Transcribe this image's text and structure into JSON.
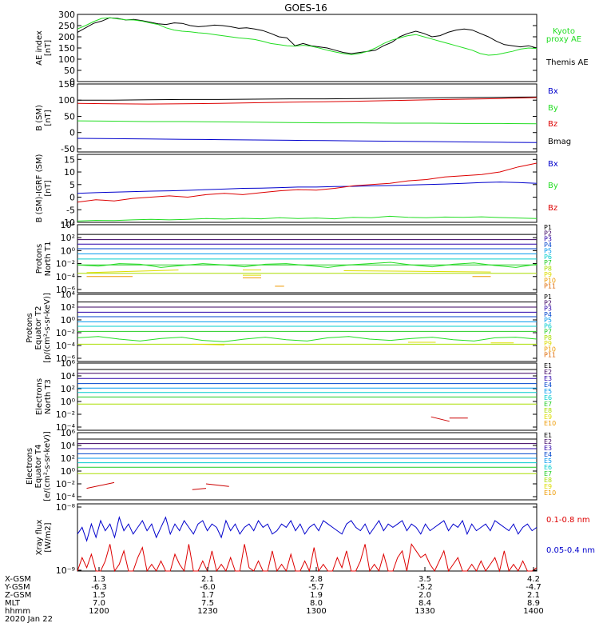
{
  "title": "GOES-16",
  "colors": {
    "black": "#000000",
    "green": "#22dd22",
    "red": "#dd0000",
    "blue": "#0000cc",
    "p": [
      "#000000",
      "#3a0060",
      "#2a00aa",
      "#0044cc",
      "#0099ee",
      "#00cccc",
      "#22cc22",
      "#aadd00",
      "#dddd00",
      "#ee9900",
      "#dd6600",
      "#cc0000"
    ]
  },
  "chart_data": [
    {
      "id": "ae",
      "type": "line",
      "ylabel": [
        "AE index",
        "[nT]"
      ],
      "ylim": [
        0,
        300
      ],
      "yticks": [
        "300",
        "250",
        "200",
        "150",
        "100",
        "50",
        "0"
      ],
      "yticks_num": [
        300,
        250,
        200,
        150,
        100,
        50,
        0
      ],
      "legend": [
        {
          "text": "Kyoto",
          "color": "green"
        },
        {
          "text": "proxy AE",
          "color": "green"
        },
        {
          "text": "Themis AE",
          "color": "black"
        }
      ],
      "series": [
        {
          "name": "Themis AE",
          "color": "black",
          "values": [
            220,
            240,
            260,
            270,
            285,
            282,
            275,
            278,
            272,
            265,
            258,
            255,
            262,
            260,
            250,
            245,
            248,
            252,
            250,
            245,
            238,
            240,
            235,
            228,
            215,
            200,
            195,
            160,
            170,
            160,
            155,
            150,
            140,
            130,
            125,
            130,
            135,
            140,
            160,
            175,
            200,
            215,
            225,
            215,
            200,
            205,
            220,
            230,
            235,
            230,
            215,
            200,
            180,
            165,
            160,
            155,
            160,
            150
          ]
        },
        {
          "name": "Kyoto proxy AE",
          "color": "green",
          "values": [
            235,
            250,
            268,
            282,
            285,
            280,
            276,
            275,
            270,
            262,
            255,
            240,
            230,
            225,
            222,
            218,
            215,
            210,
            205,
            200,
            195,
            192,
            188,
            180,
            170,
            165,
            160,
            158,
            162,
            158,
            150,
            140,
            132,
            125,
            120,
            125,
            135,
            150,
            170,
            185,
            195,
            205,
            210,
            200,
            190,
            180,
            170,
            160,
            150,
            140,
            125,
            118,
            120,
            128,
            135,
            145,
            150,
            148
          ]
        }
      ]
    },
    {
      "id": "bsm",
      "type": "line",
      "ylabel": [
        "B (SM)",
        "[nT]"
      ],
      "ylim": [
        -60,
        150
      ],
      "yticks": [
        "150",
        "100",
        "50",
        "0",
        "-50"
      ],
      "yticks_num": [
        150,
        100,
        50,
        0,
        -50
      ],
      "legend": [
        {
          "text": "Bx",
          "color": "blue"
        },
        {
          "text": "By",
          "color": "green"
        },
        {
          "text": "Bz",
          "color": "red"
        },
        {
          "text": "Bmag",
          "color": "black"
        }
      ],
      "series": [
        {
          "name": "Bmag",
          "color": "black",
          "values": [
            100,
            100,
            101,
            102,
            102,
            103,
            104,
            104,
            105,
            106,
            107,
            108,
            109,
            110
          ]
        },
        {
          "name": "Bz",
          "color": "red",
          "values": [
            90,
            89,
            88,
            89,
            90,
            92,
            94,
            95,
            97,
            99,
            101,
            103,
            105,
            108
          ]
        },
        {
          "name": "By",
          "color": "green",
          "values": [
            36,
            35,
            34,
            34,
            33,
            32,
            31,
            30,
            30,
            29,
            29,
            28,
            28,
            27
          ]
        },
        {
          "name": "Bx",
          "color": "blue",
          "values": [
            -18,
            -19,
            -20,
            -21,
            -22,
            -23,
            -24,
            -25,
            -26,
            -27,
            -28,
            -29,
            -30,
            -31
          ]
        }
      ]
    },
    {
      "id": "bigrf",
      "type": "line",
      "ylabel": [
        "B (SM)-IGRF (SM)",
        "[nT]"
      ],
      "ylim": [
        -10,
        17
      ],
      "yticks": [
        "15",
        "10",
        "5",
        "0",
        "-5",
        "-10"
      ],
      "yticks_num": [
        15,
        10,
        5,
        0,
        -5,
        -10
      ],
      "legend": [
        {
          "text": "Bx",
          "color": "blue"
        },
        {
          "text": "By",
          "color": "green"
        },
        {
          "text": "Bz",
          "color": "red"
        }
      ],
      "series": [
        {
          "name": "Bx",
          "color": "blue",
          "values": [
            1.5,
            1.8,
            2,
            2.2,
            2.4,
            2.5,
            2.7,
            3,
            3.2,
            3.5,
            3.6,
            3.8,
            4,
            4,
            4.2,
            4.3,
            4.5,
            4.6,
            4.8,
            5,
            5.2,
            5.5,
            5.8,
            6,
            5.8,
            5.5
          ]
        },
        {
          "name": "Bz",
          "color": "red",
          "values": [
            -2,
            -1,
            -1.5,
            -0.5,
            0,
            0.5,
            0,
            1,
            1.5,
            1,
            1.8,
            2.5,
            3,
            2.8,
            3.5,
            4.5,
            5,
            5.5,
            6.5,
            7,
            8,
            8.5,
            9,
            10,
            12,
            13.5
          ]
        },
        {
          "name": "By",
          "color": "green",
          "values": [
            -9.5,
            -9.2,
            -9.3,
            -9,
            -8.8,
            -9,
            -8.8,
            -8.5,
            -8.7,
            -8.4,
            -8.6,
            -8.2,
            -8.5,
            -8.3,
            -8.6,
            -8,
            -8.2,
            -7.6,
            -8,
            -8.2,
            -7.9,
            -8,
            -7.8,
            -8.1,
            -8.3,
            -8.5
          ]
        }
      ]
    },
    {
      "id": "p_t1",
      "type": "line",
      "ylog": true,
      "ylabel": [
        "Protons",
        "North T1"
      ],
      "ylim_log": [
        -6.5,
        4
      ],
      "yticks": [
        "10⁴",
        "10²",
        "10⁰",
        "10⁻²",
        "10⁻⁴",
        "10⁻⁶"
      ],
      "yticks_num": [
        4,
        2,
        0,
        -2,
        -4,
        -6
      ],
      "legend": [
        "P1",
        "P2",
        "P3",
        "P4",
        "P5",
        "P6",
        "P7",
        "P8",
        "P9",
        "P10",
        "P11"
      ],
      "levels_log": [
        2.5,
        1.7,
        1.0,
        0.3,
        -0.5,
        -1.3,
        -2.2,
        -3.5
      ],
      "green_wiggle": [
        -2.2,
        -2.4,
        -2.0,
        -2.1,
        -2.6,
        -2.3,
        -2.0,
        -2.2,
        -2.5,
        -2.1,
        -2.0,
        -2.3,
        -2.6,
        -2.2,
        -2.0,
        -1.8,
        -2.2,
        -2.5,
        -2.1,
        -1.9,
        -2.3,
        -2.6,
        -2.1
      ],
      "yellow_segments": [
        [
          0.02,
          0.22,
          -3.4,
          -3.0
        ],
        [
          0.36,
          0.4,
          -3.0,
          -3.0
        ],
        [
          0.36,
          0.4,
          -3.8,
          -3.8
        ],
        [
          0.58,
          0.9,
          -3.1,
          -3.3
        ]
      ],
      "orange_segments": [
        [
          0.02,
          0.12,
          -4.0,
          -4.0
        ],
        [
          0.36,
          0.4,
          -4.2,
          -4.2
        ],
        [
          0.43,
          0.45,
          -5.5,
          -5.5
        ],
        [
          0.86,
          0.9,
          -4.0,
          -4.0
        ]
      ]
    },
    {
      "id": "p_t2",
      "type": "line",
      "ylog": true,
      "ylabel": [
        "Protons",
        "Equator T2",
        "[p/(cm²-s-sr-keV)]"
      ],
      "ylim_log": [
        -6.5,
        4
      ],
      "yticks": [
        "10⁴",
        "10²",
        "10⁰",
        "10⁻²",
        "10⁻⁴",
        "10⁻⁶"
      ],
      "yticks_num": [
        4,
        2,
        0,
        -2,
        -4,
        -6
      ],
      "legend": [
        "P1",
        "P2",
        "P3",
        "P4",
        "P5",
        "P6",
        "P7",
        "P8",
        "P9",
        "P10",
        "P11"
      ],
      "levels_log": [
        2.8,
        2.0,
        1.2,
        0.5,
        -0.3,
        -1.0,
        -1.8,
        -3.8
      ],
      "green_wiggle": [
        -2.8,
        -2.6,
        -3.0,
        -3.3,
        -2.9,
        -2.7,
        -3.2,
        -3.4,
        -3.0,
        -2.7,
        -3.1,
        -3.3,
        -2.8,
        -2.6,
        -3.0,
        -3.2,
        -2.9,
        -2.7,
        -3.1,
        -3.3,
        -2.8,
        -2.7,
        -3.0
      ],
      "yellow_segments": [
        [
          0.25,
          0.32,
          -3.8,
          -3.9
        ],
        [
          0.72,
          0.78,
          -3.5,
          -3.5
        ],
        [
          0.9,
          0.95,
          -3.6,
          -3.6
        ]
      ],
      "orange_segments": []
    },
    {
      "id": "e_t3",
      "type": "line",
      "ylog": true,
      "ylabel": [
        "Electrons",
        "North T3"
      ],
      "ylim_log": [
        -4.5,
        6
      ],
      "yticks": [
        "10⁶",
        "10⁴",
        "10²",
        "10⁰",
        "10⁻²",
        "10⁻⁴"
      ],
      "yticks_num": [
        6,
        4,
        2,
        0,
        -2,
        -4
      ],
      "legend": [
        "E1",
        "E2",
        "E3",
        "E4",
        "E5",
        "E6",
        "E7",
        "E8",
        "E9",
        "E10"
      ],
      "levels_log": [
        5.0,
        4.4,
        3.6,
        2.8,
        2.1,
        1.4,
        0.7,
        -0.4
      ],
      "red_segments": [
        [
          0.77,
          0.81,
          -2.4,
          -3.1
        ],
        [
          0.81,
          0.85,
          -2.6,
          -2.6
        ]
      ]
    },
    {
      "id": "e_t4",
      "type": "line",
      "ylog": true,
      "ylabel": [
        "Electrons",
        "Equator T4",
        "[e/(cm²-s-sr-keV)]"
      ],
      "ylim_log": [
        -4.5,
        6
      ],
      "yticks": [
        "10⁶",
        "10⁴",
        "10²",
        "10⁰",
        "10⁻²",
        "10⁻⁴"
      ],
      "yticks_num": [
        6,
        4,
        2,
        0,
        -2,
        -4
      ],
      "legend": [
        "E1",
        "E2",
        "E3",
        "E4",
        "E5",
        "E6",
        "E7",
        "E8",
        "E9",
        "E10"
      ],
      "levels_log": [
        5.0,
        4.3,
        3.5,
        2.7,
        2.0,
        1.3,
        0.6,
        -0.4
      ],
      "red_segments": [
        [
          0.02,
          0.08,
          -2.7,
          -1.8
        ],
        [
          0.25,
          0.28,
          -2.9,
          -2.7
        ],
        [
          0.28,
          0.33,
          -2.0,
          -2.4
        ]
      ]
    },
    {
      "id": "xray",
      "type": "line",
      "ylabel": [
        "Xray flux",
        "[W/m2]"
      ],
      "yticks": [
        "10⁻⁸",
        "10⁻⁹"
      ],
      "legend": [
        {
          "text": "0.1-0.8 nm",
          "color": "red"
        },
        {
          "text": "0.05-0.4 nm",
          "color": "blue"
        }
      ],
      "blue_series": [
        0.45,
        0.35,
        0.55,
        0.3,
        0.5,
        0.25,
        0.4,
        0.3,
        0.5,
        0.2,
        0.4,
        0.3,
        0.45,
        0.35,
        0.25,
        0.4,
        0.3,
        0.5,
        0.35,
        0.2,
        0.45,
        0.3,
        0.4,
        0.25,
        0.35,
        0.45,
        0.3,
        0.25,
        0.4,
        0.3,
        0.35,
        0.5,
        0.25,
        0.4,
        0.3,
        0.45,
        0.35,
        0.3,
        0.4,
        0.25,
        0.35,
        0.3,
        0.45,
        0.4,
        0.3,
        0.35,
        0.25,
        0.4,
        0.3,
        0.45,
        0.35,
        0.3,
        0.4,
        0.25,
        0.3,
        0.35,
        0.4,
        0.45,
        0.3,
        0.25,
        0.35,
        0.4,
        0.3,
        0.45,
        0.35,
        0.25,
        0.4,
        0.3,
        0.35,
        0.3,
        0.25,
        0.4,
        0.3,
        0.35,
        0.45,
        0.3,
        0.4,
        0.35,
        0.3,
        0.25,
        0.4,
        0.3,
        0.35,
        0.25,
        0.45,
        0.3,
        0.4,
        0.35,
        0.3,
        0.4,
        0.25,
        0.3,
        0.35,
        0.4,
        0.3,
        0.45,
        0.35,
        0.3,
        0.4,
        0.35
      ],
      "red_series": [
        1.0,
        0.8,
        0.95,
        0.75,
        1.0,
        1.0,
        0.85,
        0.6,
        1.0,
        0.9,
        0.7,
        1.0,
        1.0,
        0.8,
        0.65,
        1.0,
        0.9,
        1.0,
        0.85,
        1.0,
        1.0,
        0.75,
        0.9,
        1.0,
        0.6,
        1.0,
        1.0,
        0.85,
        1.0,
        0.7,
        1.0,
        0.9,
        1.0,
        0.8,
        1.0,
        1.0,
        0.6,
        0.95,
        1.0,
        0.85,
        1.0,
        1.0,
        0.7,
        1.0,
        0.9,
        1.0,
        0.75,
        1.0,
        1.0,
        0.85,
        1.0,
        0.65,
        1.0,
        0.9,
        1.0,
        1.0,
        0.8,
        0.95,
        0.7,
        1.0,
        1.0,
        0.85,
        0.6,
        1.0,
        0.9,
        1.0,
        0.75,
        1.0,
        1.0,
        0.8,
        0.7,
        1.0,
        0.6,
        0.7,
        0.8,
        0.75,
        0.9,
        1.0,
        0.85,
        0.7,
        1.0,
        0.9,
        0.8,
        1.0,
        1.0,
        0.9,
        1.0,
        0.85,
        1.0,
        0.9,
        0.8,
        1.0,
        0.7,
        1.0,
        0.9,
        1.0,
        0.85,
        1.0,
        1.0,
        0.95
      ]
    }
  ],
  "x_axis": {
    "labels": [
      "1200",
      "1230",
      "1300",
      "1330",
      "1400"
    ],
    "rows": [
      {
        "name": "X-GSM",
        "values": [
          "1.3",
          "2.1",
          "2.8",
          "3.5",
          "4.2"
        ]
      },
      {
        "name": "Y-GSM",
        "values": [
          "-6.3",
          "-6.0",
          "-5.7",
          "-5.2",
          "-4.7"
        ]
      },
      {
        "name": "Z-GSM",
        "values": [
          "1.5",
          "1.7",
          "1.9",
          "2.0",
          "2.1"
        ]
      },
      {
        "name": "MLT",
        "values": [
          "7.0",
          "7.5",
          "8.0",
          "8.4",
          "8.9"
        ]
      },
      {
        "name": "hhmm",
        "values": [
          "1200",
          "1230",
          "1300",
          "1330",
          "1400"
        ]
      }
    ],
    "date": "2020 Jan 22"
  }
}
